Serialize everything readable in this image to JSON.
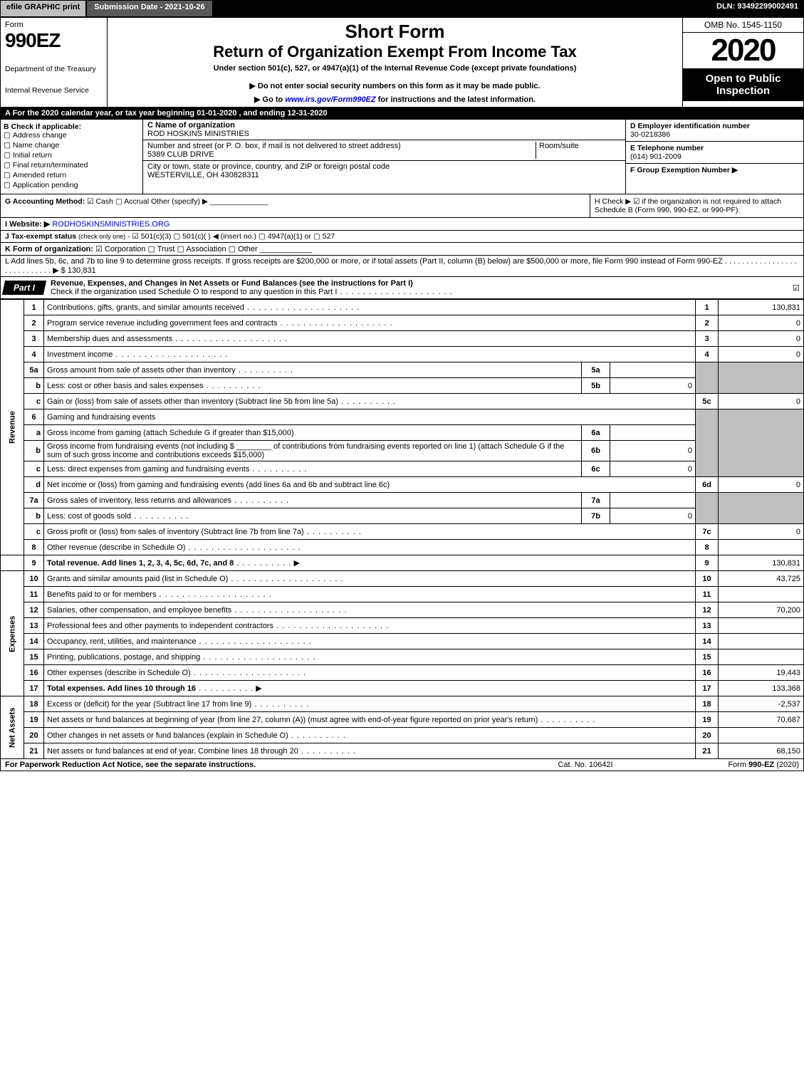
{
  "topbar": {
    "efile": "efile GRAPHIC print",
    "submission": "Submission Date - 2021-10-26",
    "dln": "DLN: 93492299002491"
  },
  "header": {
    "form_label": "Form",
    "form_no": "990EZ",
    "dept1": "Department of the Treasury",
    "dept2": "Internal Revenue Service",
    "short": "Short Form",
    "return": "Return of Organization Exempt From Income Tax",
    "under": "Under section 501(c), 527, or 4947(a)(1) of the Internal Revenue Code (except private foundations)",
    "donot": "▶ Do not enter social security numbers on this form as it may be made public.",
    "goto_pre": "▶ Go to ",
    "goto_link": "www.irs.gov/Form990EZ",
    "goto_post": " for instructions and the latest information.",
    "omb": "OMB No. 1545-1150",
    "year": "2020",
    "open": "Open to Public Inspection"
  },
  "A": "A For the 2020 calendar year, or tax year beginning 01-01-2020 , and ending 12-31-2020",
  "B": {
    "hdr": "B  Check if applicable:",
    "opts": [
      "Address change",
      "Name change",
      "Initial return",
      "Final return/terminated",
      "Amended return",
      "Application pending"
    ]
  },
  "C": {
    "label": "C Name of organization",
    "name": "ROD HOSKINS MINISTRIES",
    "street_label": "Number and street (or P. O. box, if mail is not delivered to street address)",
    "street": "5389 CLUB DRIVE",
    "room_label": "Room/suite",
    "city_label": "City or town, state or province, country, and ZIP or foreign postal code",
    "city": "WESTERVILLE, OH  430828311"
  },
  "D": {
    "label": "D Employer identification number",
    "val": "30-0218386"
  },
  "E": {
    "label": "E Telephone number",
    "val": "(614) 901-2009"
  },
  "F": {
    "label": "F Group Exemption Number  ▶",
    "val": ""
  },
  "G": {
    "label": "G Accounting Method:",
    "cash": "Cash",
    "accrual": "Accrual",
    "other": "Other (specify) ▶"
  },
  "H": {
    "text": "H  Check ▶  ☑  if the organization is not required to attach Schedule B (Form 990, 990-EZ, or 990-PF)."
  },
  "I": {
    "label": "I Website: ▶",
    "val": "RODHOSKINSMINISTRIES.ORG"
  },
  "J": {
    "label": "J Tax-exempt status",
    "sm": "(check only one)",
    "rest": " -  ☑ 501(c)(3)  ▢  501(c)(  ) ◀ (insert no.)  ▢  4947(a)(1) or  ▢  527"
  },
  "K": {
    "label": "K Form of organization:",
    "rest": "  ☑ Corporation   ▢ Trust   ▢ Association   ▢ Other"
  },
  "L": {
    "text": "L Add lines 5b, 6c, and 7b to line 9 to determine gross receipts. If gross receipts are $200,000 or more, or if total assets (Part II, column (B) below) are $500,000 or more, file Form 990 instead of Form 990-EZ  .  .  .  .  .  .  .  .  .  .  .  .  .  .  .  .  .  .  .  .  .  .  .  .  .  .  .  .  ▶ $ 130,831"
  },
  "partI": {
    "tab": "Part I",
    "title": "Revenue, Expenses, and Changes in Net Assets or Fund Balances (see the instructions for Part I)",
    "sub": "Check if the organization used Schedule O to respond to any question in this Part I"
  },
  "sections": {
    "revenue": "Revenue",
    "expenses": "Expenses",
    "netassets": "Net Assets"
  },
  "lines": {
    "l1": {
      "n": "1",
      "d": "Contributions, gifts, grants, and similar amounts received",
      "c": "1",
      "a": "130,831"
    },
    "l2": {
      "n": "2",
      "d": "Program service revenue including government fees and contracts",
      "c": "2",
      "a": "0"
    },
    "l3": {
      "n": "3",
      "d": "Membership dues and assessments",
      "c": "3",
      "a": "0"
    },
    "l4": {
      "n": "4",
      "d": "Investment income",
      "c": "4",
      "a": "0"
    },
    "l5a": {
      "n": "5a",
      "d": "Gross amount from sale of assets other than inventory",
      "b": "5a",
      "ba": ""
    },
    "l5b": {
      "n": "b",
      "d": "Less: cost or other basis and sales expenses",
      "b": "5b",
      "ba": "0"
    },
    "l5c": {
      "n": "c",
      "d": "Gain or (loss) from sale of assets other than inventory (Subtract line 5b from line 5a)",
      "c": "5c",
      "a": "0"
    },
    "l6": {
      "n": "6",
      "d": "Gaming and fundraising events"
    },
    "l6a": {
      "n": "a",
      "d": "Gross income from gaming (attach Schedule G if greater than $15,000)",
      "b": "6a",
      "ba": ""
    },
    "l6b": {
      "n": "b",
      "d1": "Gross income from fundraising events (not including $",
      "d2": "of contributions from fundraising events reported on line 1) (attach Schedule G if the sum of such gross income and contributions exceeds $15,000)",
      "b": "6b",
      "ba": "0"
    },
    "l6c": {
      "n": "c",
      "d": "Less: direct expenses from gaming and fundraising events",
      "b": "6c",
      "ba": "0"
    },
    "l6d": {
      "n": "d",
      "d": "Net income or (loss) from gaming and fundraising events (add lines 6a and 6b and subtract line 6c)",
      "c": "6d",
      "a": "0"
    },
    "l7a": {
      "n": "7a",
      "d": "Gross sales of inventory, less returns and allowances",
      "b": "7a",
      "ba": ""
    },
    "l7b": {
      "n": "b",
      "d": "Less: cost of goods sold",
      "b": "7b",
      "ba": "0"
    },
    "l7c": {
      "n": "c",
      "d": "Gross profit or (loss) from sales of inventory (Subtract line 7b from line 7a)",
      "c": "7c",
      "a": "0"
    },
    "l8": {
      "n": "8",
      "d": "Other revenue (describe in Schedule O)",
      "c": "8",
      "a": ""
    },
    "l9": {
      "n": "9",
      "d": "Total revenue. Add lines 1, 2, 3, 4, 5c, 6d, 7c, and 8",
      "c": "9",
      "a": "130,831",
      "arrow": true,
      "bold": true
    },
    "l10": {
      "n": "10",
      "d": "Grants and similar amounts paid (list in Schedule O)",
      "c": "10",
      "a": "43,725"
    },
    "l11": {
      "n": "11",
      "d": "Benefits paid to or for members",
      "c": "11",
      "a": ""
    },
    "l12": {
      "n": "12",
      "d": "Salaries, other compensation, and employee benefits",
      "c": "12",
      "a": "70,200"
    },
    "l13": {
      "n": "13",
      "d": "Professional fees and other payments to independent contractors",
      "c": "13",
      "a": ""
    },
    "l14": {
      "n": "14",
      "d": "Occupancy, rent, utilities, and maintenance",
      "c": "14",
      "a": ""
    },
    "l15": {
      "n": "15",
      "d": "Printing, publications, postage, and shipping",
      "c": "15",
      "a": ""
    },
    "l16": {
      "n": "16",
      "d": "Other expenses (describe in Schedule O)",
      "c": "16",
      "a": "19,443"
    },
    "l17": {
      "n": "17",
      "d": "Total expenses. Add lines 10 through 16",
      "c": "17",
      "a": "133,368",
      "arrow": true,
      "bold": true
    },
    "l18": {
      "n": "18",
      "d": "Excess or (deficit) for the year (Subtract line 17 from line 9)",
      "c": "18",
      "a": "-2,537"
    },
    "l19": {
      "n": "19",
      "d": "Net assets or fund balances at beginning of year (from line 27, column (A)) (must agree with end-of-year figure reported on prior year's return)",
      "c": "19",
      "a": "70,687"
    },
    "l20": {
      "n": "20",
      "d": "Other changes in net assets or fund balances (explain in Schedule O)",
      "c": "20",
      "a": ""
    },
    "l21": {
      "n": "21",
      "d": "Net assets or fund balances at end of year. Combine lines 18 through 20",
      "c": "21",
      "a": "68,150",
      "arrow": true
    }
  },
  "footer": {
    "f1": "For Paperwork Reduction Act Notice, see the separate instructions.",
    "f2": "Cat. No. 10642I",
    "f3": "Form 990-EZ (2020)"
  }
}
